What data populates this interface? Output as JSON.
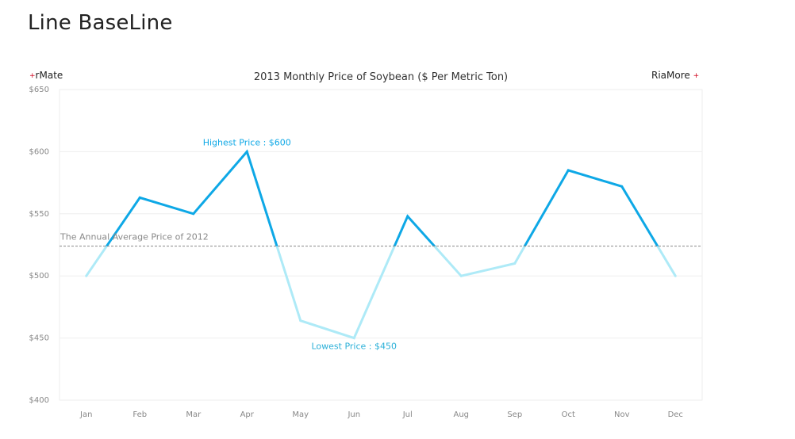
{
  "page": {
    "title": "Line BaseLine"
  },
  "brand": {
    "left_text": "rMate",
    "right_text": "RiaMore",
    "mark": "+"
  },
  "colors": {
    "above_baseline": "#0ea8e6",
    "below_baseline": "#aeeaf7",
    "baseline": "#888888",
    "grid": "#eeeeee",
    "axis_text": "#888888",
    "highest_label": "#0ea8e6",
    "lowest_label": "#2bb0d8"
  },
  "chart_data": {
    "type": "line",
    "title": "2013 Monthly Price of Soybean ($ Per Metric Ton)",
    "xlabel": "",
    "ylabel": "",
    "categories": [
      "Jan",
      "Feb",
      "Mar",
      "Apr",
      "May",
      "Jun",
      "Jul",
      "Aug",
      "Sep",
      "Oct",
      "Nov",
      "Dec"
    ],
    "series": [
      {
        "values": [
          500,
          563,
          550,
          600,
          464,
          450,
          548,
          500,
          510,
          585,
          572,
          500
        ]
      }
    ],
    "ylim": [
      400,
      650
    ],
    "yticks": [
      400,
      450,
      500,
      550,
      600,
      650
    ],
    "ytick_labels": [
      "$400",
      "$450",
      "$500",
      "$550",
      "$600",
      "$650"
    ],
    "grid": true,
    "baseline": {
      "value": 524,
      "label": "The Annual Average Price of 2012"
    },
    "annotations": [
      {
        "text": "Highest Price : $600",
        "category": "Apr",
        "value": 600,
        "position": "above"
      },
      {
        "text": "Lowest Price : $450",
        "category": "Jun",
        "value": 450,
        "position": "below"
      }
    ]
  }
}
